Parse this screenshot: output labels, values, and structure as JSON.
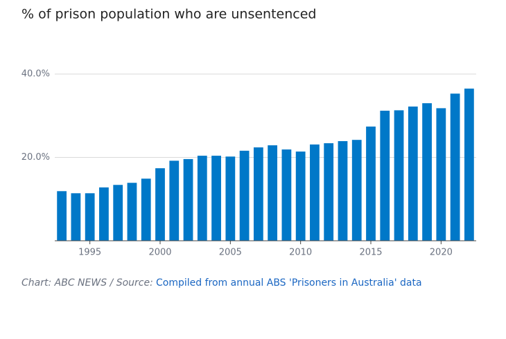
{
  "chart_data": {
    "type": "bar",
    "title": "% of prison population who are unsentenced",
    "x": [
      1993,
      1994,
      1995,
      1996,
      1997,
      1998,
      1999,
      2000,
      2001,
      2002,
      2003,
      2004,
      2005,
      2006,
      2007,
      2008,
      2009,
      2010,
      2011,
      2012,
      2013,
      2014,
      2015,
      2016,
      2017,
      2018,
      2019,
      2020,
      2021,
      2022
    ],
    "values": [
      11.9,
      11.4,
      11.4,
      12.8,
      13.4,
      13.9,
      14.9,
      17.4,
      19.2,
      19.6,
      20.4,
      20.4,
      20.2,
      21.6,
      22.4,
      22.9,
      21.9,
      21.4,
      23.1,
      23.4,
      23.9,
      24.2,
      27.4,
      31.2,
      31.3,
      32.2,
      33.0,
      31.8,
      35.3,
      36.5
    ],
    "color": "#0078c8",
    "xlim": [
      1992.5,
      2022.5
    ],
    "xticks": [
      1995,
      2000,
      2005,
      2010,
      2015,
      2020
    ],
    "ylim": [
      0,
      40
    ],
    "yticks": [
      {
        "value": 20,
        "label": "20.0%"
      },
      {
        "value": 40,
        "label": "40.0%"
      }
    ],
    "grid": true,
    "source_prefix": "Chart: ABC NEWS / Source:",
    "source_link": "Compiled from annual ABS 'Prisoners in Australia' data"
  }
}
